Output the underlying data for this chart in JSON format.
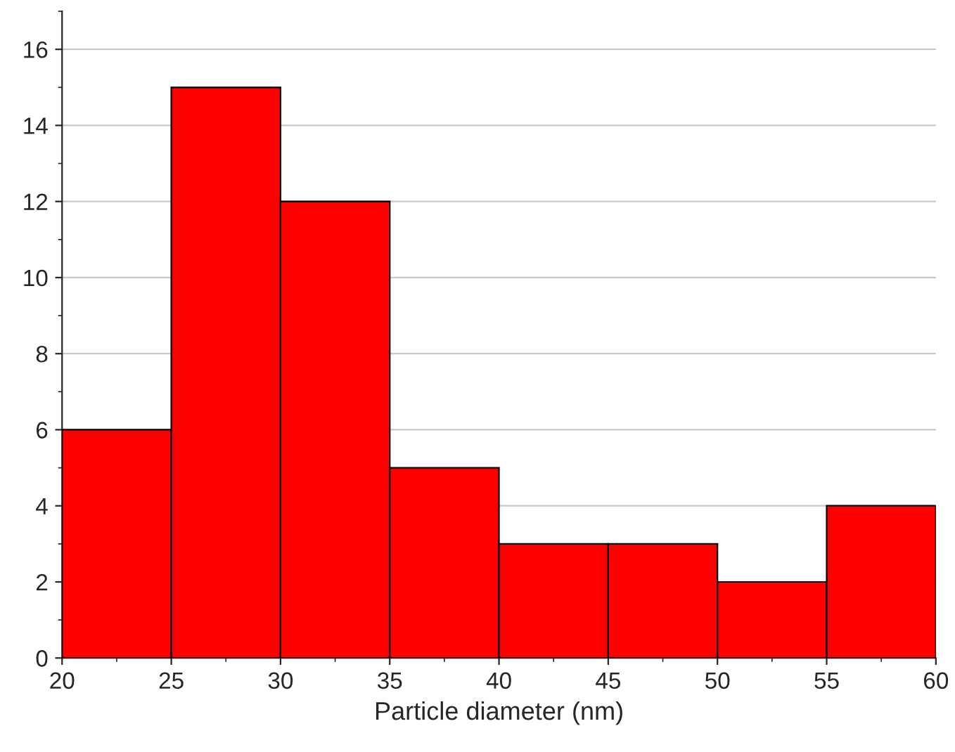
{
  "chart_data": {
    "type": "histogram",
    "xlabel": "Particle diameter (nm)",
    "bins": [
      20,
      25,
      30,
      35,
      40,
      45,
      50,
      55,
      60
    ],
    "values": [
      6,
      15,
      12,
      5,
      3,
      3,
      2,
      4
    ],
    "color": "#ff0000",
    "xlim": [
      20,
      60
    ],
    "xticks": [
      20,
      25,
      30,
      35,
      40,
      45,
      50,
      55,
      60
    ],
    "ylim": [
      0,
      17
    ],
    "yticks": [
      0,
      2,
      4,
      6,
      8,
      10,
      12,
      14,
      16
    ],
    "grid": "y"
  }
}
